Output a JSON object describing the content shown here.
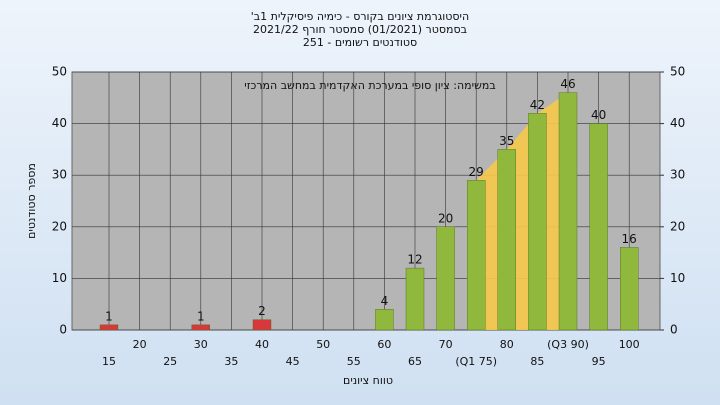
{
  "chart_data": {
    "type": "bar",
    "title_lines": [
      "היסטוגרמת ציונים בקורס - כימיה פיסיקלית 1ב'",
      "בסמסטר (01/2021) סמסטר חורף 2021/22",
      "סטודנטים רשומים - 251"
    ],
    "annotation": "במשימה: ציון סופי במערכת האקדמית במחשב המרכזי",
    "x_label": "טווח ציונים",
    "y_label": "מספר סטודנטים",
    "categories": [
      "15",
      "20",
      "25",
      "30",
      "35",
      "40",
      "45",
      "50",
      "55",
      "60",
      "65",
      "70",
      "(Q1 75)",
      "80",
      "85",
      "(Q3 90)",
      "95",
      "100"
    ],
    "values": [
      1,
      0,
      0,
      1,
      0,
      2,
      0,
      0,
      0,
      4,
      12,
      20,
      29,
      35,
      42,
      46,
      40,
      16
    ],
    "colors": [
      "#d8383a",
      "#d8383a",
      "#d8383a",
      "#d8383a",
      "#d8383a",
      "#d8383a",
      "#d8383a",
      "#d8383a",
      "#d8383a",
      "#8fb83c",
      "#8fb83c",
      "#8fb83c",
      "#8fb83c",
      "#8fb83c",
      "#8fb83c",
      "#8fb83c",
      "#8fb83c",
      "#8fb83c"
    ],
    "ylim": [
      0,
      50
    ],
    "yticks": [
      0,
      10,
      20,
      30,
      40,
      50
    ],
    "y2lim": [
      0,
      50
    ],
    "y2ticks": [
      0,
      10,
      20,
      30,
      40,
      50
    ],
    "grid": true
  }
}
